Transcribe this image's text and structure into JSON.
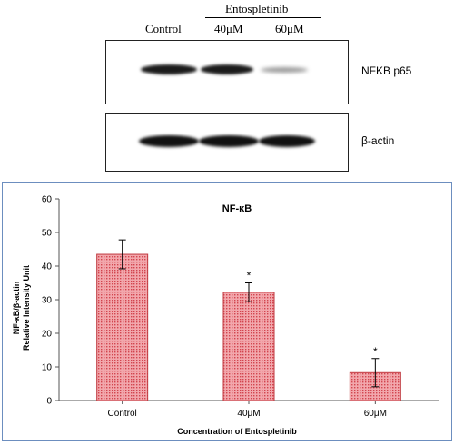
{
  "blot": {
    "lanes": [
      "Control",
      "40μM",
      "60μM"
    ],
    "treatment": "Entospletinib",
    "rows": [
      "NFKB p65",
      "β-actin"
    ]
  },
  "chart_data": {
    "type": "bar",
    "title": "NF-κB",
    "ylabel_line1": "NF-κB/β-actin",
    "ylabel_line2": "Relative Intensity Unit",
    "xlabel": "Concentration of Entospletinib",
    "categories": [
      "Control",
      "40μM",
      "60μM"
    ],
    "values": [
      43.5,
      32.2,
      8.3
    ],
    "errors": [
      4.3,
      2.8,
      4.2
    ],
    "significance": [
      "",
      "*",
      "*"
    ],
    "ylim": [
      0,
      60
    ],
    "yticks": [
      0,
      10,
      20,
      30,
      40,
      50,
      60
    ],
    "bar_color": "#e8737c",
    "bar_edge": "#c0393f",
    "grid": false,
    "legend": "none"
  }
}
